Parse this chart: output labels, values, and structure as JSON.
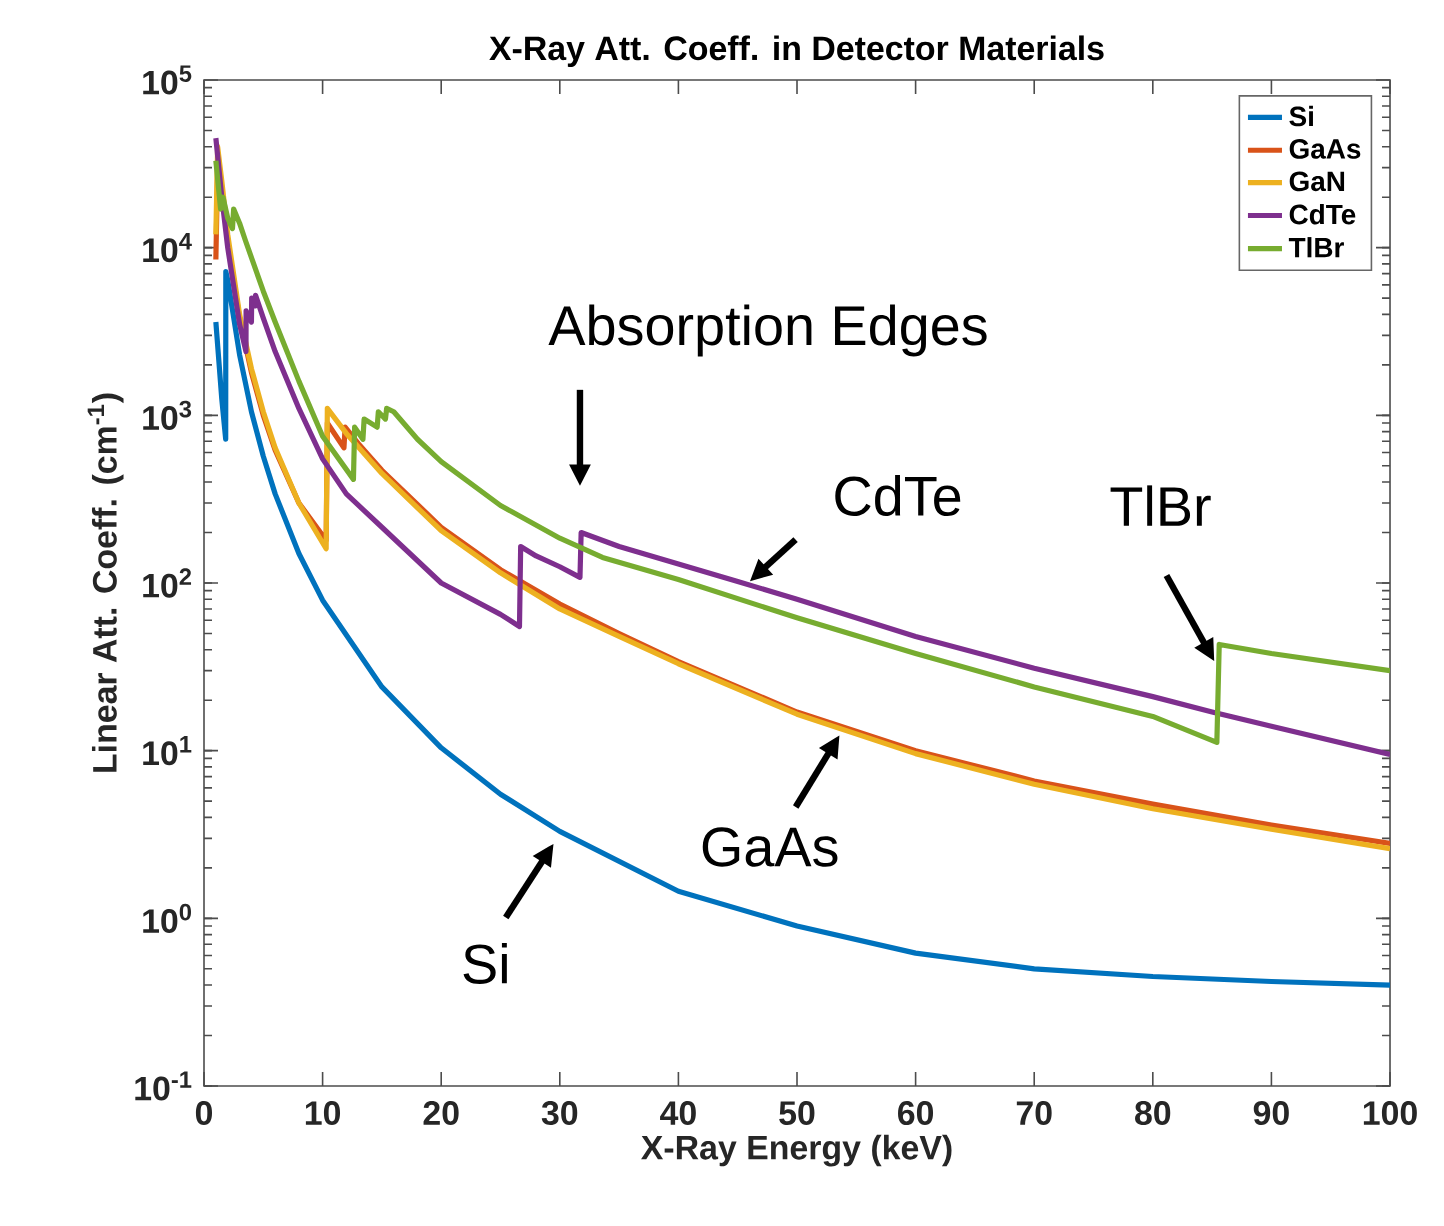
{
  "chart_data": {
    "type": "line",
    "title": "X-Ray Att. Coeff. in Detector Materials",
    "xlabel": "X-Ray Energy (keV)",
    "ylabel": "Linear Att. Coeff. (cm$^{-1}$)",
    "log": "y",
    "xlim": [
      0,
      100
    ],
    "ylim": [
      0.1,
      100000
    ],
    "xticks": [
      0,
      10,
      20,
      30,
      40,
      50,
      60,
      70,
      80,
      90,
      100
    ],
    "yticks": [
      {
        "value": 0.1,
        "label": "10$^{-1}$"
      },
      {
        "value": 1,
        "label": "10$^{0}$"
      },
      {
        "value": 10,
        "label": "10$^{1}$"
      },
      {
        "value": 100,
        "label": "10$^{2}$"
      },
      {
        "value": 1000,
        "label": "10$^{3}$"
      },
      {
        "value": 10000,
        "label": "10$^{4}$"
      },
      {
        "value": 100000,
        "label": "10$^{5}$"
      }
    ],
    "legend": "top right",
    "series": [
      {
        "name": "Si",
        "color": "#0072bd",
        "x": [
          1,
          1.5,
          1.83,
          1.84,
          2,
          3,
          4,
          5,
          6,
          8,
          10,
          15,
          20,
          25,
          30,
          40,
          50,
          60,
          70,
          80,
          90,
          100
        ],
        "values": [
          3600,
          1250,
          720,
          7200,
          6400,
          2300,
          1050,
          570,
          340,
          150,
          79,
          24,
          10.4,
          5.5,
          3.3,
          1.45,
          0.9,
          0.62,
          0.5,
          0.45,
          0.42,
          0.4
        ]
      },
      {
        "name": "GaAs",
        "color": "#d95319",
        "x": [
          1,
          1.15,
          1.5,
          2,
          3,
          4,
          5,
          6,
          8,
          10.3,
          10.4,
          11.8,
          11.9,
          13,
          15,
          20,
          25,
          30,
          35,
          40,
          50,
          60,
          70,
          80,
          90,
          100
        ],
        "values": [
          8500,
          30000,
          22000,
          11000,
          3800,
          1800,
          1000,
          620,
          300,
          180,
          900,
          640,
          850,
          680,
          470,
          215,
          120,
          75,
          50,
          34,
          17,
          10,
          6.6,
          4.8,
          3.6,
          2.8
        ]
      },
      {
        "name": "GaN",
        "color": "#edb120",
        "x": [
          1,
          1.15,
          1.5,
          2,
          3,
          4,
          5,
          6,
          8,
          10.3,
          10.4,
          12,
          15,
          20,
          25,
          30,
          35,
          40,
          50,
          60,
          70,
          80,
          90,
          100
        ],
        "values": [
          12000,
          40000,
          25000,
          12000,
          4000,
          1900,
          1050,
          640,
          300,
          160,
          1100,
          780,
          450,
          205,
          115,
          70,
          48,
          33,
          16.5,
          9.6,
          6.3,
          4.5,
          3.4,
          2.6
        ]
      },
      {
        "name": "CdTe",
        "color": "#7e2f8e",
        "x": [
          1,
          1.5,
          2,
          3,
          3.54,
          3.55,
          4.0,
          4.02,
          4.34,
          4.35,
          5,
          6,
          8,
          10,
          12,
          15,
          20,
          25,
          26.6,
          26.7,
          28,
          30,
          31.7,
          31.8,
          35,
          40,
          45,
          50,
          60,
          70,
          80,
          85,
          90,
          100
        ],
        "values": [
          45000,
          20000,
          10000,
          3500,
          2400,
          4200,
          3600,
          5000,
          4500,
          5200,
          3800,
          2400,
          1100,
          550,
          340,
          215,
          100,
          65,
          55,
          165,
          145,
          125,
          108,
          200,
          165,
          130,
          102,
          80,
          48,
          31,
          21,
          17,
          14,
          9.5
        ]
      },
      {
        "name": "TlBr",
        "color": "#77ac30",
        "x": [
          1,
          1.4,
          1.6,
          2,
          2.4,
          2.5,
          3,
          3.5,
          5,
          6,
          8,
          10,
          12.6,
          12.7,
          13.4,
          13.5,
          14.6,
          14.7,
          15.3,
          15.4,
          16,
          18,
          20,
          25,
          30,
          33.6,
          40,
          50,
          60,
          70,
          80,
          85.4,
          85.6,
          90,
          100
        ],
        "values": [
          33000,
          17000,
          20000,
          15000,
          13000,
          17000,
          14000,
          11000,
          5500,
          3600,
          1600,
          750,
          415,
          850,
          720,
          950,
          850,
          1050,
          950,
          1100,
          1050,
          720,
          530,
          290,
          185,
          142,
          105,
          62,
          38,
          24,
          16,
          11.2,
          43,
          38,
          30
        ]
      }
    ],
    "annotations": [
      "Absorption Edges",
      {
        "text": "CdTe",
        "x": 46,
        "y": 102
      },
      {
        "text": "TlBr",
        "x": 85.2,
        "y": 34
      },
      {
        "text": "GaAs",
        "x": 53.6,
        "y": 12.4
      },
      {
        "text": "Si",
        "x": 30,
        "y": 3.3
      }
    ]
  }
}
